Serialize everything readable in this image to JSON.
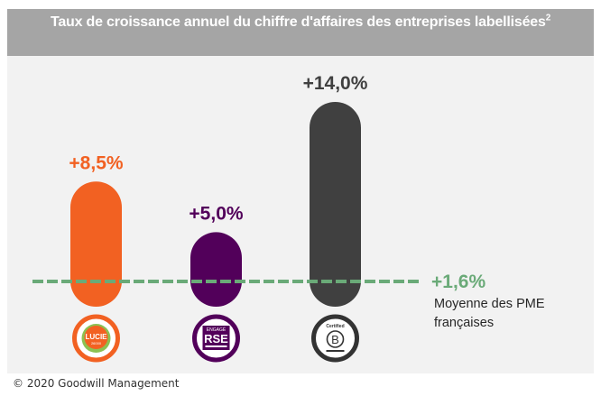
{
  "chart_data": {
    "type": "bar",
    "title": "Taux de croissance annuel du chiffre d'affaires des entreprises labellisées",
    "title_superscript": "2",
    "categories": [
      "Lucie 26000",
      "Engagé RSE",
      "Certified B Corporation"
    ],
    "values": [
      8.5,
      5.0,
      14.0
    ],
    "value_labels": [
      "+8,5%",
      "+5,0%",
      "+14,0%"
    ],
    "colors": [
      "#f26122",
      "#52005a",
      "#404040"
    ],
    "unit": "%",
    "xlabel": "",
    "ylabel": "",
    "grid": false,
    "reference_line": {
      "value": 1.6,
      "label": "+1,6%",
      "description_lines": [
        "Moyenne des PME",
        "françaises"
      ],
      "color": "#6aaa78",
      "style": "dashed"
    },
    "category_icons": [
      {
        "name": "lucie-logo-icon",
        "text": "LUCIE",
        "subtext": "26000",
        "color": "#f26122"
      },
      {
        "name": "engage-rse-logo-icon",
        "text": "RSE",
        "subtext": "ENGAGÉ",
        "color": "#52005a"
      },
      {
        "name": "b-corp-logo-icon",
        "text": "B",
        "subtext": "Certified",
        "color": "#333333"
      }
    ]
  },
  "footer": {
    "copyright": "© 2020 Goodwill Management"
  }
}
